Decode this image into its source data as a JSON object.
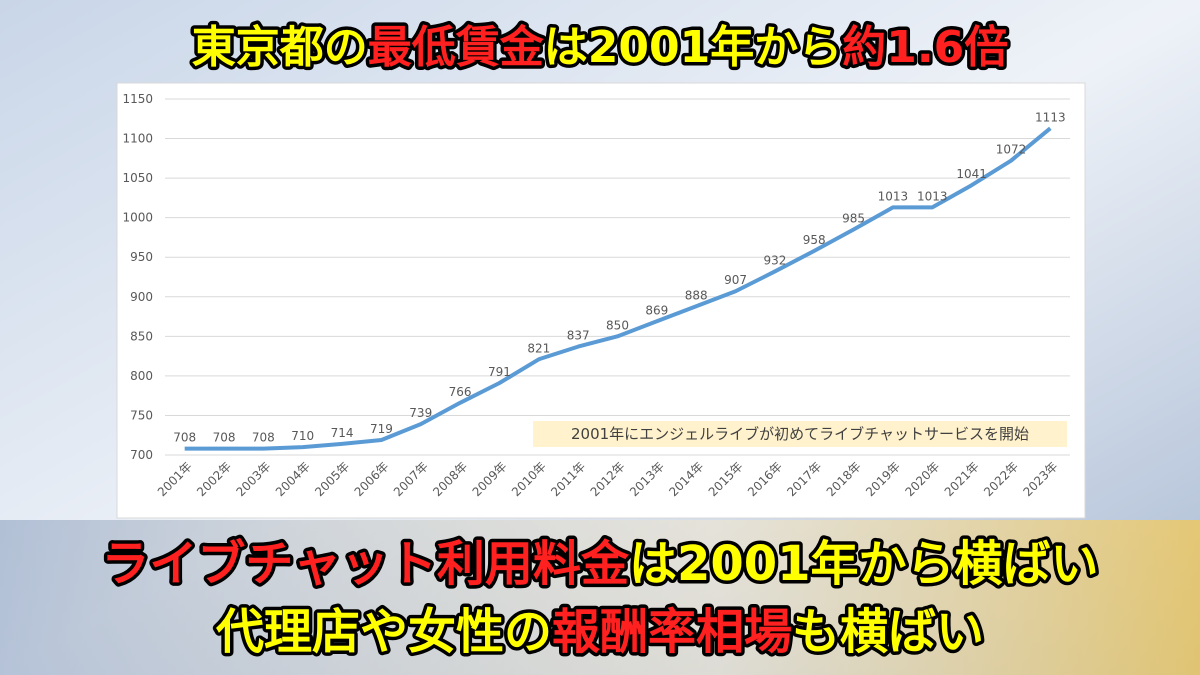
{
  "headline": [
    {
      "text": "東京都の",
      "color": "#ffff00"
    },
    {
      "text": "最低賃金",
      "color": "#ff2020"
    },
    {
      "text": "は2001年から",
      "color": "#ffff00"
    },
    {
      "text": "約1.6倍",
      "color": "#ff2020"
    }
  ],
  "footer_lines": [
    [
      {
        "text": "ライブチャット利用料金",
        "color": "#ff2020"
      },
      {
        "text": "は2001年から横ばい",
        "color": "#ffff00"
      }
    ],
    [
      {
        "text": "代理店や女性の",
        "color": "#ffff00"
      },
      {
        "text": "報酬率相場",
        "color": "#ff2020"
      },
      {
        "text": "も横ばい",
        "color": "#ffff00"
      }
    ]
  ],
  "chart_data": {
    "type": "line",
    "categories": [
      "2001年",
      "2002年",
      "2003年",
      "2004年",
      "2005年",
      "2006年",
      "2007年",
      "2008年",
      "2009年",
      "2010年",
      "2011年",
      "2012年",
      "2013年",
      "2014年",
      "2015年",
      "2016年",
      "2017年",
      "2018年",
      "2019年",
      "2020年",
      "2021年",
      "2022年",
      "2023年"
    ],
    "values": [
      708,
      708,
      708,
      710,
      714,
      719,
      739,
      766,
      791,
      821,
      837,
      850,
      869,
      888,
      907,
      932,
      958,
      985,
      1013,
      1013,
      1041,
      1072,
      1113
    ],
    "color": "#5b9bd5",
    "ylim": [
      700,
      1150
    ],
    "yticks": [
      700,
      750,
      800,
      850,
      900,
      950,
      1000,
      1050,
      1100,
      1150
    ],
    "grid": true,
    "annotation": "2001年にエンジェルライブが初めてライブチャットサービスを開始"
  }
}
